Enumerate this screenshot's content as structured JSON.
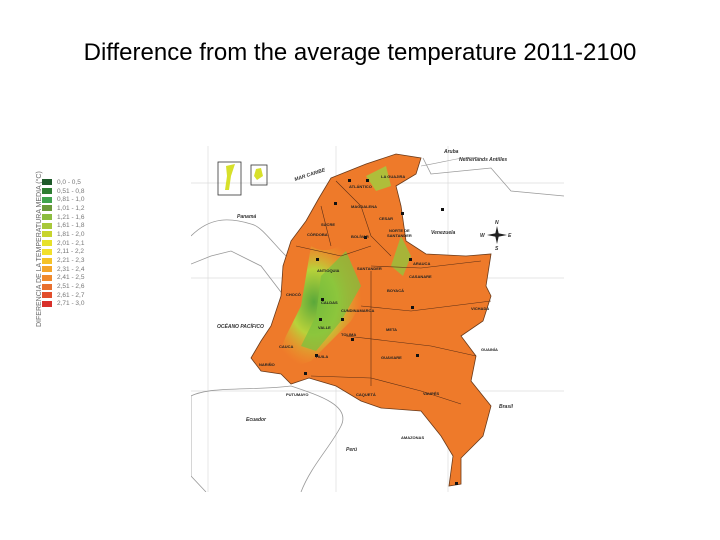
{
  "title": "Difference from the average temperature 2011-2100",
  "legend": {
    "axis_label": "DIFERENCIA DE LA TEMPERATURA MEDIA (°C)",
    "items": [
      {
        "label": "0,0 - 0,5",
        "color": "#1f5a2a"
      },
      {
        "label": "0,51 - 0,8",
        "color": "#2e7d32"
      },
      {
        "label": "0,81 - 1,0",
        "color": "#3fa34d"
      },
      {
        "label": "1,01 - 1,2",
        "color": "#6a9a3a"
      },
      {
        "label": "1,21 - 1,6",
        "color": "#8cbd3f"
      },
      {
        "label": "1,61 - 1,8",
        "color": "#a8c83a"
      },
      {
        "label": "1,81 - 2,0",
        "color": "#c8d42e"
      },
      {
        "label": "2,01 - 2,1",
        "color": "#e6e12a"
      },
      {
        "label": "2,11 - 2,2",
        "color": "#f2e02a"
      },
      {
        "label": "2,21 - 2,3",
        "color": "#f5c226"
      },
      {
        "label": "2,31 - 2,4",
        "color": "#f4a52a"
      },
      {
        "label": "2,41 - 2,5",
        "color": "#f08a2c"
      },
      {
        "label": "2,51 - 2,6",
        "color": "#e8702e"
      },
      {
        "label": "2,61 - 2,7",
        "color": "#e24e2c"
      },
      {
        "label": "2,71 - 3,0",
        "color": "#d8302a"
      }
    ]
  },
  "map": {
    "sea_label": "MAR CARIBE",
    "ocean_label": "OCÉANO PACÍFICO",
    "countries": [
      "Aruba",
      "Netherlands Antilles",
      "Panamá",
      "Venezuela",
      "Ecuador",
      "Perú",
      "Brasil"
    ],
    "insets": [
      "San Andrés",
      "Providencia"
    ],
    "compass": {
      "n": "N",
      "s": "S",
      "e": "E",
      "w": "W"
    },
    "departments": [
      "ATLÁNTICO",
      "MAGDALENA",
      "LA GUAJIRA",
      "CESAR",
      "SUCRE",
      "CÓRDOBA",
      "BOLÍVAR",
      "NORTE DE SANTANDER",
      "ANTIOQUIA",
      "SANTANDER",
      "ARAUCA",
      "CASANARE",
      "BOYACÁ",
      "CHOCÓ",
      "CALDAS",
      "CUNDINAMARCA",
      "VALLE",
      "TOLIMA",
      "CAUCA",
      "HUILA",
      "NARIÑO",
      "PUTUMAYO",
      "CAQUETÁ",
      "META",
      "VICHADA",
      "GUAINÍA",
      "GUAVIARE",
      "VAUPÉS",
      "AMAZONAS"
    ]
  }
}
